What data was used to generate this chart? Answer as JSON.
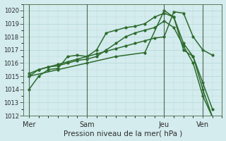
{
  "bg_color": "#d4ecee",
  "grid_color": "#b8d8da",
  "line_color": "#2d6b2d",
  "marker": "o",
  "markersize": 2.0,
  "linewidth": 1.1,
  "xlabel": "Pression niveau de la mer( hPa )",
  "ylim": [
    1012,
    1020.5
  ],
  "yticks": [
    1012,
    1013,
    1014,
    1015,
    1016,
    1017,
    1018,
    1019,
    1020
  ],
  "xtick_labels": [
    "Mer",
    "Sam",
    "Jeu",
    "Ven"
  ],
  "xtick_positions": [
    0,
    3,
    7,
    9
  ],
  "total_days": 10,
  "series": [
    {
      "x": [
        0,
        0.5,
        1,
        1.5,
        2,
        2.5,
        3,
        3.5,
        4,
        4.5,
        5,
        5.5,
        6,
        6.5,
        7,
        7.5,
        8,
        8.5,
        9,
        9.5
      ],
      "y": [
        1014.0,
        1015.0,
        1015.5,
        1015.6,
        1016.5,
        1016.6,
        1016.5,
        1017.0,
        1018.3,
        1018.5,
        1018.7,
        1018.8,
        1019.0,
        1019.5,
        1019.8,
        1019.5,
        1017.0,
        1016.5,
        1014.0,
        1011.9
      ]
    },
    {
      "x": [
        0,
        0.5,
        1,
        1.5,
        2,
        2.5,
        3,
        3.5,
        4,
        4.5,
        5,
        5.5,
        6,
        6.5,
        7,
        7.5,
        8,
        8.5,
        9,
        9.5
      ],
      "y": [
        1015.0,
        1015.5,
        1015.7,
        1015.8,
        1016.0,
        1016.2,
        1016.3,
        1016.5,
        1017.0,
        1017.5,
        1018.0,
        1018.3,
        1018.5,
        1018.7,
        1019.2,
        1018.7,
        1017.3,
        1016.0,
        1013.5,
        1011.9
      ]
    },
    {
      "x": [
        0,
        0.5,
        1,
        1.5,
        2,
        2.5,
        3,
        3.5,
        4,
        4.5,
        5,
        5.5,
        6,
        6.5,
        7,
        7.5,
        8,
        8.5,
        9,
        9.5
      ],
      "y": [
        1015.2,
        1015.5,
        1015.7,
        1015.9,
        1016.1,
        1016.3,
        1016.5,
        1016.7,
        1016.9,
        1017.1,
        1017.3,
        1017.5,
        1017.7,
        1017.9,
        1018.0,
        1019.9,
        1019.8,
        1018.0,
        1017.0,
        1016.6
      ]
    },
    {
      "x": [
        0,
        1.5,
        3,
        4.5,
        6,
        7,
        7.5,
        8,
        8.5,
        9,
        9.5
      ],
      "y": [
        1015.0,
        1015.5,
        1016.0,
        1016.5,
        1016.8,
        1020.0,
        1019.5,
        1017.5,
        1016.5,
        1014.5,
        1012.5
      ]
    }
  ],
  "vline_positions": [
    0,
    3,
    7,
    9
  ]
}
